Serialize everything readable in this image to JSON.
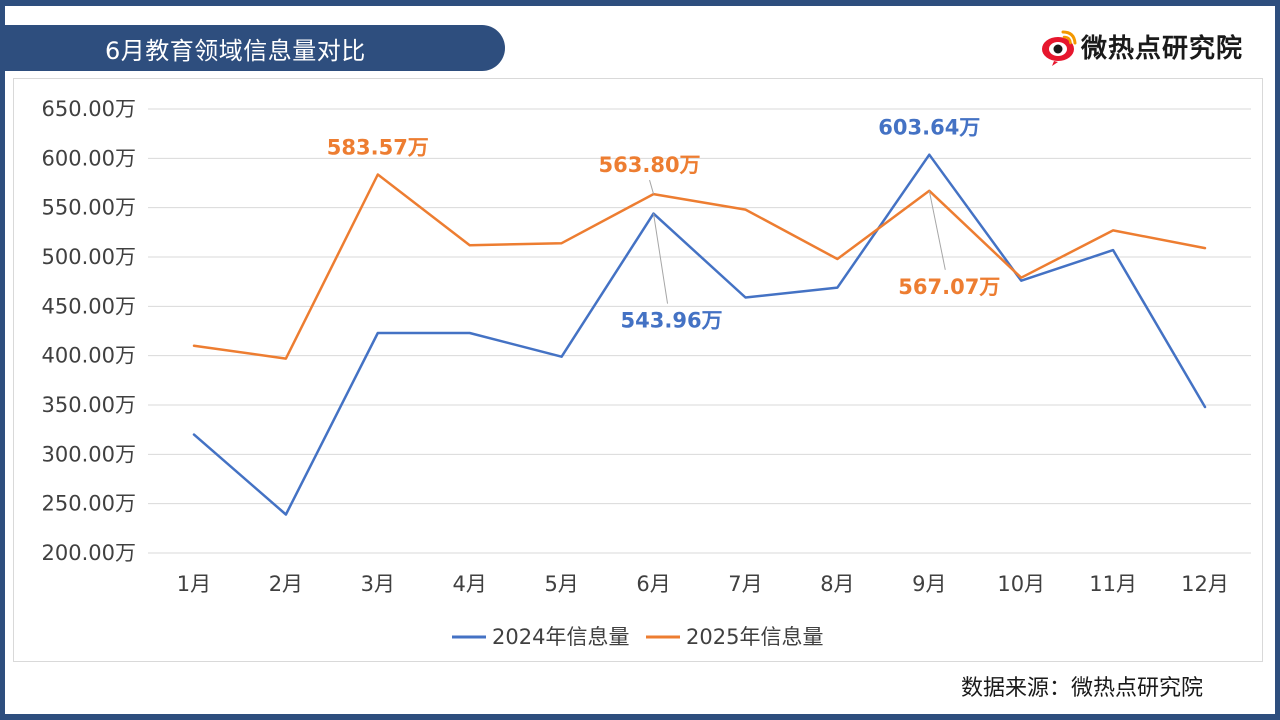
{
  "header": {
    "title": "6月教育领域信息量对比",
    "brand": "微热点研究院",
    "brand_icon": "weibo-eye-icon"
  },
  "footer": {
    "source": "数据来源：微热点研究院"
  },
  "colors": {
    "banner": "#2E4E7E",
    "series_2024": "#4472C4",
    "series_2025": "#ED7D31",
    "grid": "#D9D9D9"
  },
  "chart_data": {
    "type": "line",
    "title": "",
    "xlabel": "",
    "ylabel": "",
    "categories": [
      "1月",
      "2月",
      "3月",
      "4月",
      "5月",
      "6月",
      "7月",
      "8月",
      "9月",
      "10月",
      "11月",
      "12月"
    ],
    "ylim": [
      200,
      650
    ],
    "yticks": [
      200,
      250,
      300,
      350,
      400,
      450,
      500,
      550,
      600,
      650
    ],
    "ytick_labels": [
      "200.00万",
      "250.00万",
      "300.00万",
      "350.00万",
      "400.00万",
      "450.00万",
      "500.00万",
      "550.00万",
      "600.00万",
      "650.00万"
    ],
    "grid": "horizontal",
    "legend_position": "bottom",
    "series": [
      {
        "name": "2024年信息量",
        "color": "#4472C4",
        "values": [
          320,
          239,
          423,
          423,
          399,
          543.96,
          459,
          469,
          603.64,
          476,
          507,
          348
        ]
      },
      {
        "name": "2025年信息量",
        "color": "#ED7D31",
        "values": [
          410,
          397,
          583.57,
          512,
          514,
          563.8,
          548,
          498,
          567.07,
          479,
          527,
          509
        ]
      }
    ],
    "annotations": [
      {
        "series": 1,
        "index": 2,
        "text": "583.57万"
      },
      {
        "series": 1,
        "index": 5,
        "text": "563.80万"
      },
      {
        "series": 0,
        "index": 5,
        "text": "543.96万"
      },
      {
        "series": 0,
        "index": 8,
        "text": "603.64万"
      },
      {
        "series": 1,
        "index": 8,
        "text": "567.07万"
      }
    ]
  }
}
